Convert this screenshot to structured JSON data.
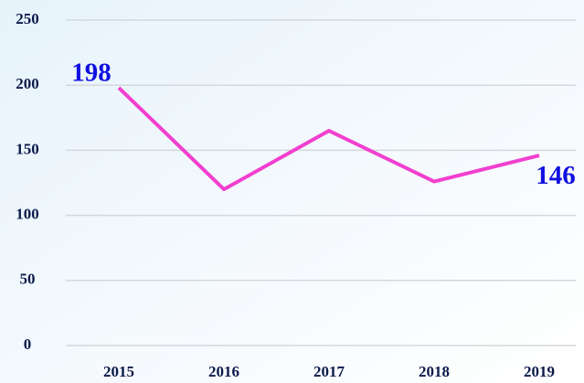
{
  "chart_data": {
    "type": "line",
    "categories": [
      "2015",
      "2016",
      "2017",
      "2018",
      "2019"
    ],
    "series": [
      {
        "color": "#f23fcf",
        "values": [
          198,
          120,
          165,
          126,
          146
        ]
      }
    ],
    "ylim": [
      0,
      250
    ],
    "yticks": [
      0,
      50,
      100,
      150,
      200,
      250
    ],
    "grid": true,
    "data_labels": "ends"
  }
}
